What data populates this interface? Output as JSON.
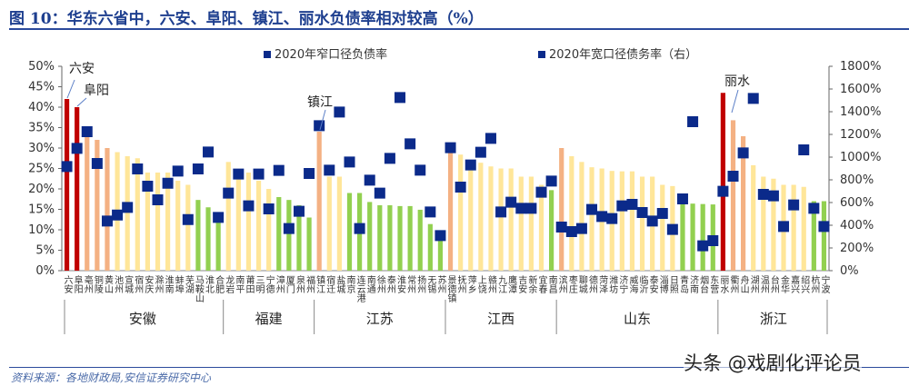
{
  "title": "图 10：华东六省中，六安、阜阳、镇江、丽水负债率相对较高（%）",
  "source": "资料来源：各地财政局,安信证券研究中心",
  "watermark": "头条 @戏剧化评论员",
  "colors": {
    "title": "#1e3f8f",
    "marker": "#0b2a8a",
    "red": "#c00000",
    "orange": "#f4b183",
    "yellow": "#ffe699",
    "green": "#92d050"
  },
  "chart_data": {
    "type": "bar+scatter",
    "title": "图 10：华东六省中，六安、阜阳、镇江、丽水负债率相对较高（%）",
    "legend_position": "top",
    "series": [
      {
        "name": "2020年窄口径负债率",
        "type": "bar",
        "axis": "left"
      },
      {
        "name": "2020年宽口径债务率（右）",
        "type": "scatter",
        "axis": "right",
        "marker": "square"
      }
    ],
    "y_left": {
      "range": [
        0,
        50
      ],
      "ticks": [
        "0%",
        "5%",
        "10%",
        "15%",
        "20%",
        "25%",
        "30%",
        "35%",
        "40%",
        "45%",
        "50%"
      ]
    },
    "y_right": {
      "range": [
        0,
        1800
      ],
      "ticks": [
        "0%",
        "200%",
        "400%",
        "600%",
        "800%",
        "1000%",
        "1200%",
        "1400%",
        "1600%",
        "1800%"
      ]
    },
    "grid": false,
    "annotations": [
      "六安",
      "阜阳",
      "镇江",
      "丽水"
    ],
    "groups": [
      {
        "province": "安徽",
        "cities": [
          {
            "name": "六安",
            "bar": 42,
            "color": "red",
            "sq": 917
          },
          {
            "name": "阜阳",
            "bar": 40,
            "color": "red",
            "sq": 1077
          },
          {
            "name": "亳州",
            "bar": 33,
            "color": "orange",
            "sq": 1224
          },
          {
            "name": "铜陵",
            "bar": 32,
            "color": "orange",
            "sq": 944
          },
          {
            "name": "黄山",
            "bar": 30,
            "color": "orange",
            "sq": 437
          },
          {
            "name": "池州",
            "bar": 29,
            "color": "yellow",
            "sq": 490
          },
          {
            "name": "宣城",
            "bar": 28,
            "color": "yellow",
            "sq": 557
          },
          {
            "name": "宿州",
            "bar": 27.5,
            "color": "yellow",
            "sq": 896
          },
          {
            "name": "安庆",
            "bar": 24,
            "color": "yellow",
            "sq": 744
          },
          {
            "name": "滁州",
            "bar": 24,
            "color": "yellow",
            "sq": 624
          },
          {
            "name": "淮南",
            "bar": 24,
            "color": "yellow",
            "sq": 770
          },
          {
            "name": "蚌埠",
            "bar": 22,
            "color": "yellow",
            "sq": 877
          },
          {
            "name": "芜湖",
            "bar": 21,
            "color": "yellow",
            "sq": 450
          },
          {
            "name": "马鞍山",
            "bar": 17.3,
            "color": "green",
            "sq": 896
          },
          {
            "name": "淮北",
            "bar": 15.5,
            "color": "green",
            "sq": 1045
          },
          {
            "name": "合肥",
            "bar": 13,
            "color": "green",
            "sq": 469
          }
        ]
      },
      {
        "province": "福建",
        "cities": [
          {
            "name": "龙岩",
            "bar": 26.6,
            "color": "yellow",
            "sq": 683
          },
          {
            "name": "南平",
            "bar": 24,
            "color": "yellow",
            "sq": 851
          },
          {
            "name": "莆田",
            "bar": 24,
            "color": "yellow",
            "sq": 571
          },
          {
            "name": "三明",
            "bar": 22,
            "color": "yellow",
            "sq": 851
          },
          {
            "name": "宁德",
            "bar": 20,
            "color": "yellow",
            "sq": 544
          },
          {
            "name": "漳州",
            "bar": 18,
            "color": "green",
            "sq": 883
          },
          {
            "name": "厦门",
            "bar": 17.3,
            "color": "green",
            "sq": 371
          },
          {
            "name": "泉州",
            "bar": 16,
            "color": "green",
            "sq": 523
          },
          {
            "name": "福州",
            "bar": 13,
            "color": "green",
            "sq": 856
          }
        ]
      },
      {
        "province": "江苏",
        "cities": [
          {
            "name": "镇江",
            "bar": 34,
            "color": "orange",
            "sq": 1277
          },
          {
            "name": "宿迁",
            "bar": 23,
            "color": "yellow",
            "sq": 885
          },
          {
            "name": "盐城",
            "bar": 23,
            "color": "yellow",
            "sq": 1397
          },
          {
            "name": "南京",
            "bar": 19,
            "color": "green",
            "sq": 957
          },
          {
            "name": "连云港",
            "bar": 19,
            "color": "green",
            "sq": 371
          },
          {
            "name": "南通",
            "bar": 16.8,
            "color": "green",
            "sq": 797
          },
          {
            "name": "徐州",
            "bar": 16,
            "color": "green",
            "sq": 683
          },
          {
            "name": "泰州",
            "bar": 16,
            "color": "green",
            "sq": 989
          },
          {
            "name": "淮安",
            "bar": 15.8,
            "color": "green",
            "sq": 1525
          },
          {
            "name": "常州",
            "bar": 15.8,
            "color": "green",
            "sq": 1117
          },
          {
            "name": "扬州",
            "bar": 14.9,
            "color": "green",
            "sq": 885
          },
          {
            "name": "无锡",
            "bar": 11.4,
            "color": "green",
            "sq": 517
          },
          {
            "name": "苏州",
            "bar": 9.2,
            "color": "green",
            "sq": 309
          }
        ]
      },
      {
        "province": "江西",
        "cities": [
          {
            "name": "景德镇",
            "bar": 29,
            "color": "orange",
            "sq": 1083
          },
          {
            "name": "抚州",
            "bar": 28.4,
            "color": "yellow",
            "sq": 736
          },
          {
            "name": "萍乡",
            "bar": 27,
            "color": "yellow",
            "sq": 931
          },
          {
            "name": "上饶",
            "bar": 26.4,
            "color": "yellow",
            "sq": 1043
          },
          {
            "name": "赣州",
            "bar": 25.5,
            "color": "yellow",
            "sq": 1165
          },
          {
            "name": "九江",
            "bar": 25,
            "color": "yellow",
            "sq": 517
          },
          {
            "name": "鹰潭",
            "bar": 25,
            "color": "yellow",
            "sq": 603
          },
          {
            "name": "吉安",
            "bar": 23,
            "color": "yellow",
            "sq": 549
          },
          {
            "name": "新余",
            "bar": 23,
            "color": "yellow",
            "sq": 549
          },
          {
            "name": "宜春",
            "bar": 21,
            "color": "yellow",
            "sq": 691
          },
          {
            "name": "南昌",
            "bar": 19.7,
            "color": "green",
            "sq": 789
          }
        ]
      },
      {
        "province": "山东",
        "cities": [
          {
            "name": "滨州",
            "bar": 30,
            "color": "orange",
            "sq": 384
          },
          {
            "name": "枣庄",
            "bar": 28,
            "color": "yellow",
            "sq": 344
          },
          {
            "name": "聊城",
            "bar": 26.6,
            "color": "yellow",
            "sq": 371
          },
          {
            "name": "德州",
            "bar": 25.3,
            "color": "yellow",
            "sq": 539
          },
          {
            "name": "菏泽",
            "bar": 25,
            "color": "yellow",
            "sq": 477
          },
          {
            "name": "潍坊",
            "bar": 24.4,
            "color": "yellow",
            "sq": 459
          },
          {
            "name": "济宁",
            "bar": 24.3,
            "color": "yellow",
            "sq": 571
          },
          {
            "name": "威海",
            "bar": 24.3,
            "color": "yellow",
            "sq": 584
          },
          {
            "name": "临沂",
            "bar": 23,
            "color": "yellow",
            "sq": 512
          },
          {
            "name": "泰安",
            "bar": 23,
            "color": "yellow",
            "sq": 437
          },
          {
            "name": "淄博",
            "bar": 21,
            "color": "yellow",
            "sq": 504
          },
          {
            "name": "日照",
            "bar": 20.7,
            "color": "yellow",
            "sq": 363
          },
          {
            "name": "青岛",
            "bar": 18.4,
            "color": "green",
            "sq": 632
          },
          {
            "name": "济南",
            "bar": 16.4,
            "color": "green",
            "sq": 1312
          },
          {
            "name": "烟台",
            "bar": 16.3,
            "color": "green",
            "sq": 219
          },
          {
            "name": "东营",
            "bar": 16.2,
            "color": "green",
            "sq": 264
          }
        ]
      },
      {
        "province": "浙江",
        "cities": [
          {
            "name": "丽水",
            "bar": 43.5,
            "color": "red",
            "sq": 699
          },
          {
            "name": "衢州",
            "bar": 36.8,
            "color": "orange",
            "sq": 832
          },
          {
            "name": "舟山",
            "bar": 32.9,
            "color": "orange",
            "sq": 1037
          },
          {
            "name": "湖州",
            "bar": 25.8,
            "color": "yellow",
            "sq": 1517
          },
          {
            "name": "温州",
            "bar": 23,
            "color": "yellow",
            "sq": 672
          },
          {
            "name": "台州",
            "bar": 22.5,
            "color": "yellow",
            "sq": 659
          },
          {
            "name": "金华",
            "bar": 21,
            "color": "yellow",
            "sq": 389
          },
          {
            "name": "嘉兴",
            "bar": 21,
            "color": "yellow",
            "sq": 579
          },
          {
            "name": "绍兴",
            "bar": 20.5,
            "color": "yellow",
            "sq": 1064
          },
          {
            "name": "杭州",
            "bar": 17,
            "color": "green",
            "sq": 549
          },
          {
            "name": "宁波",
            "bar": 17,
            "color": "green",
            "sq": 389
          }
        ]
      }
    ]
  }
}
